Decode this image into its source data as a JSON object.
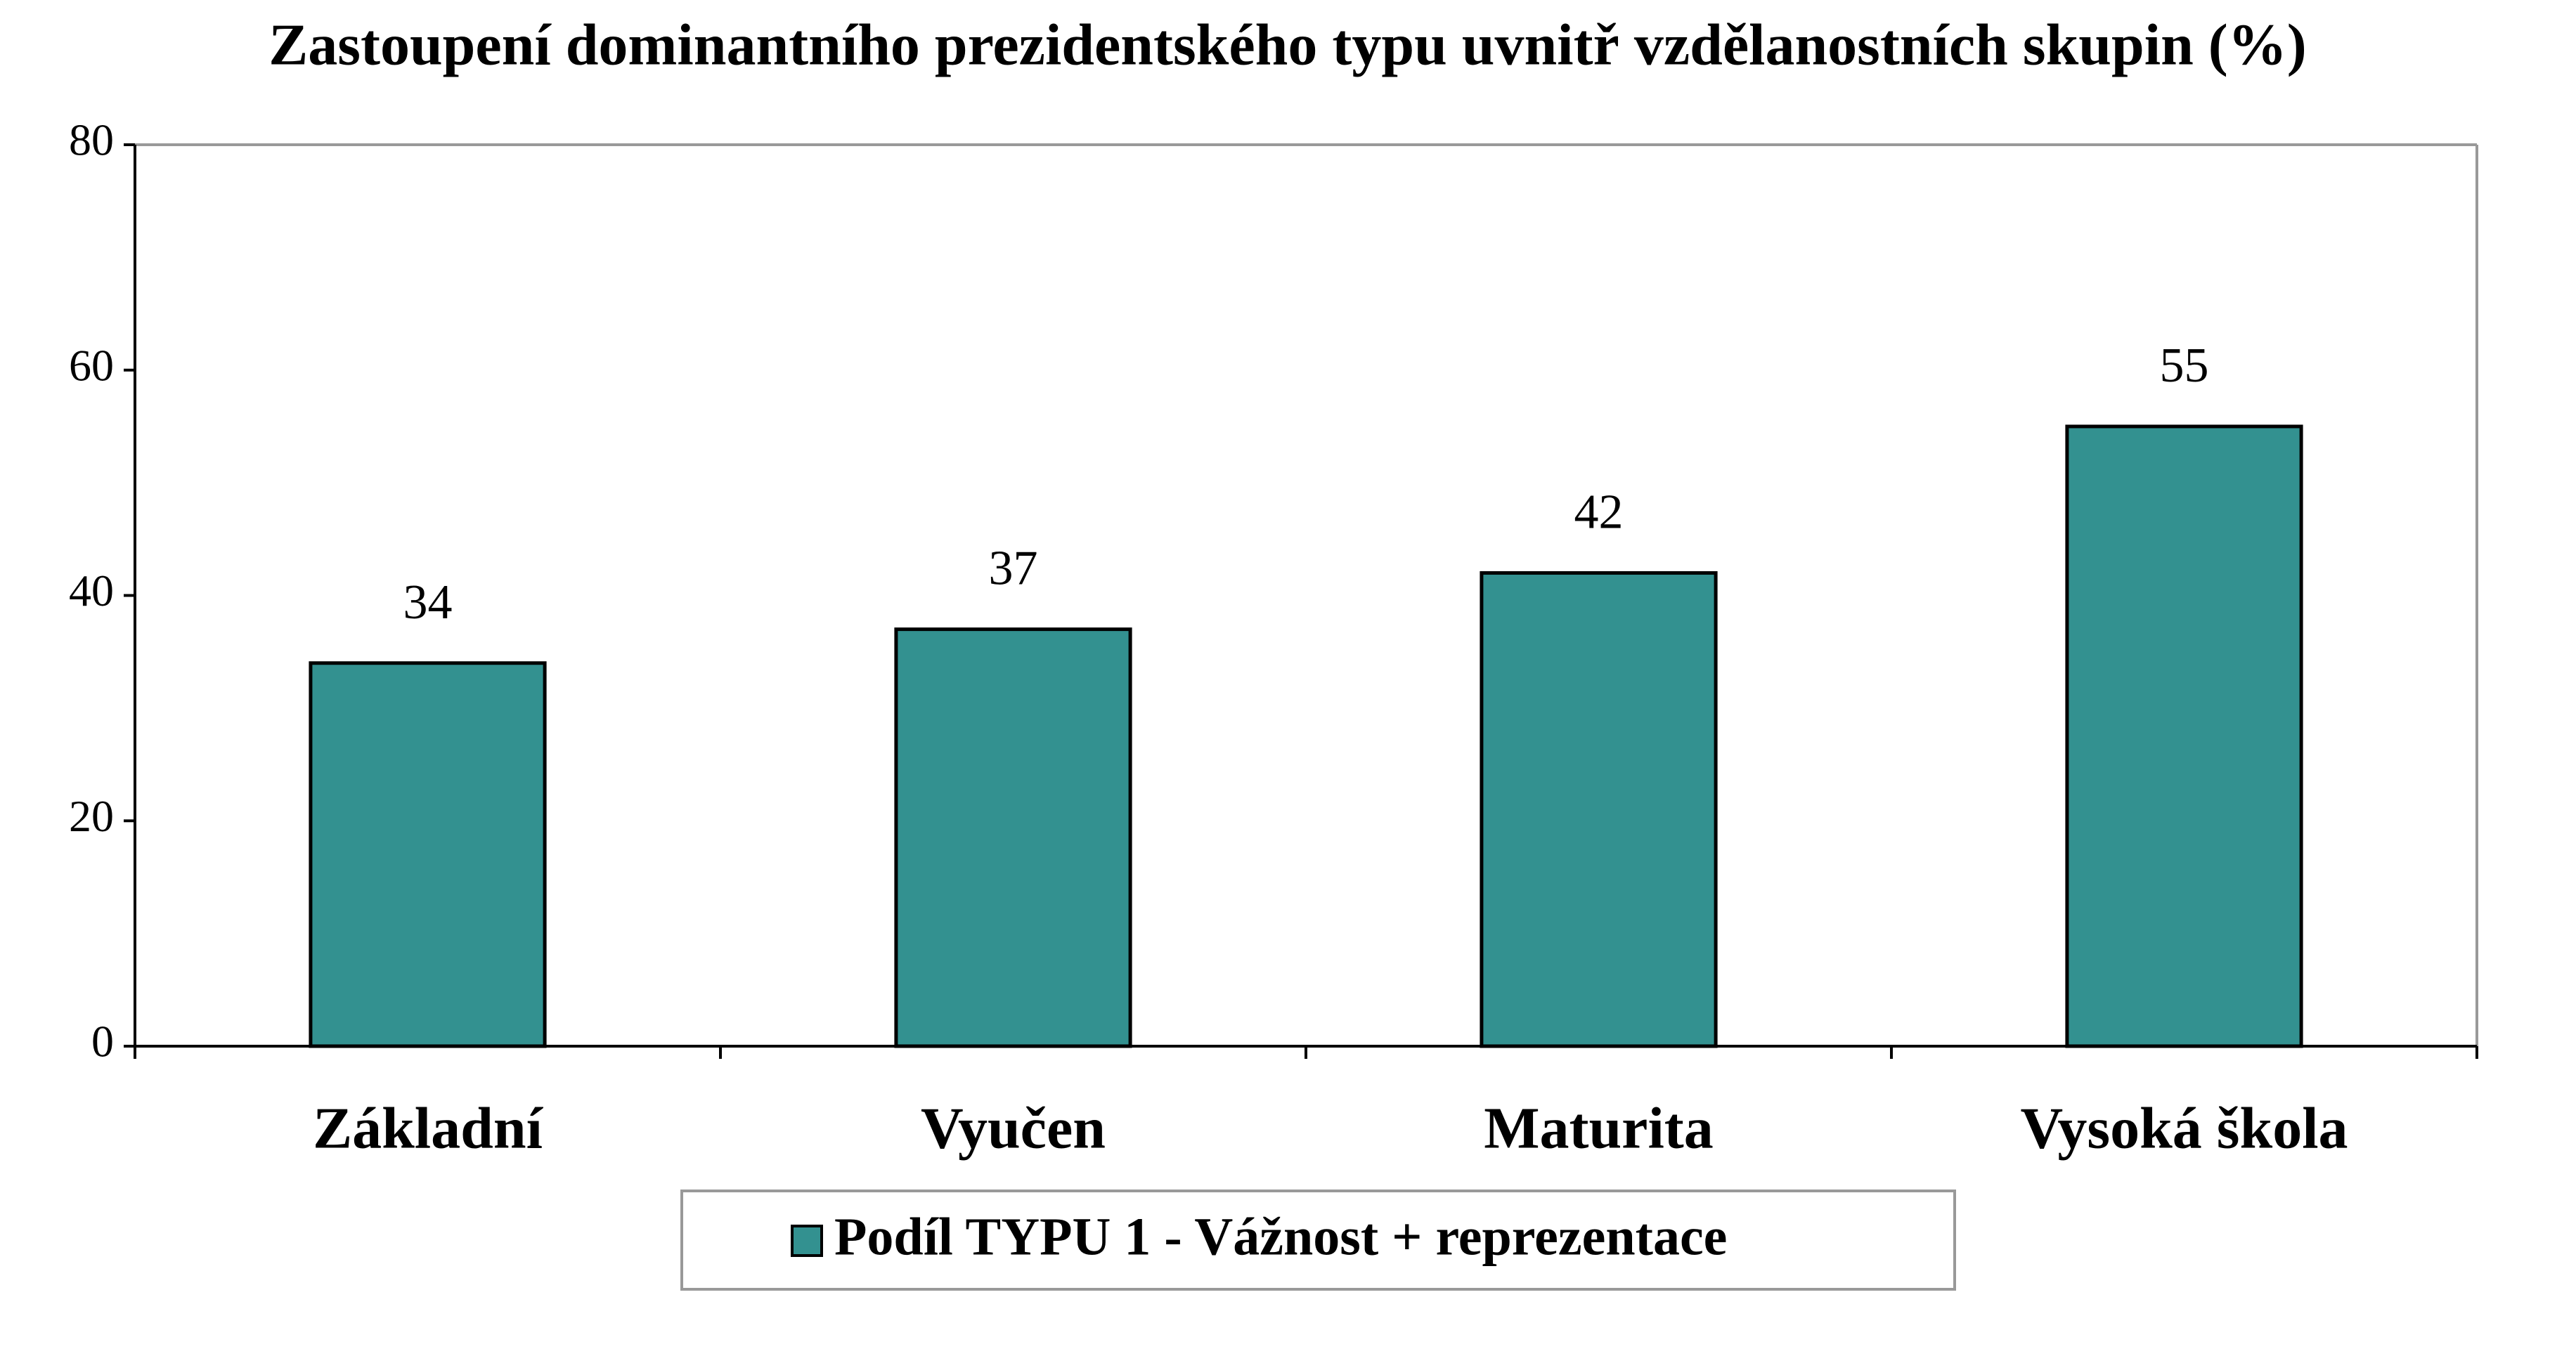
{
  "chart_data": {
    "type": "bar",
    "title": "Zastoupení dominantního prezidentského typu uvnitř vzdělanostních skupin (%)",
    "categories": [
      "Základní",
      "Vyučen",
      "Maturita",
      "Vysoká škola"
    ],
    "series": [
      {
        "name": "Podíl TYPU 1 - Vážnost + reprezentace",
        "color": "#339190",
        "values": [
          34,
          37,
          42,
          55
        ]
      }
    ],
    "ylim": [
      0,
      80
    ],
    "yticks": [
      0,
      20,
      40,
      60,
      80
    ],
    "grid": false,
    "legend": "bottom"
  }
}
